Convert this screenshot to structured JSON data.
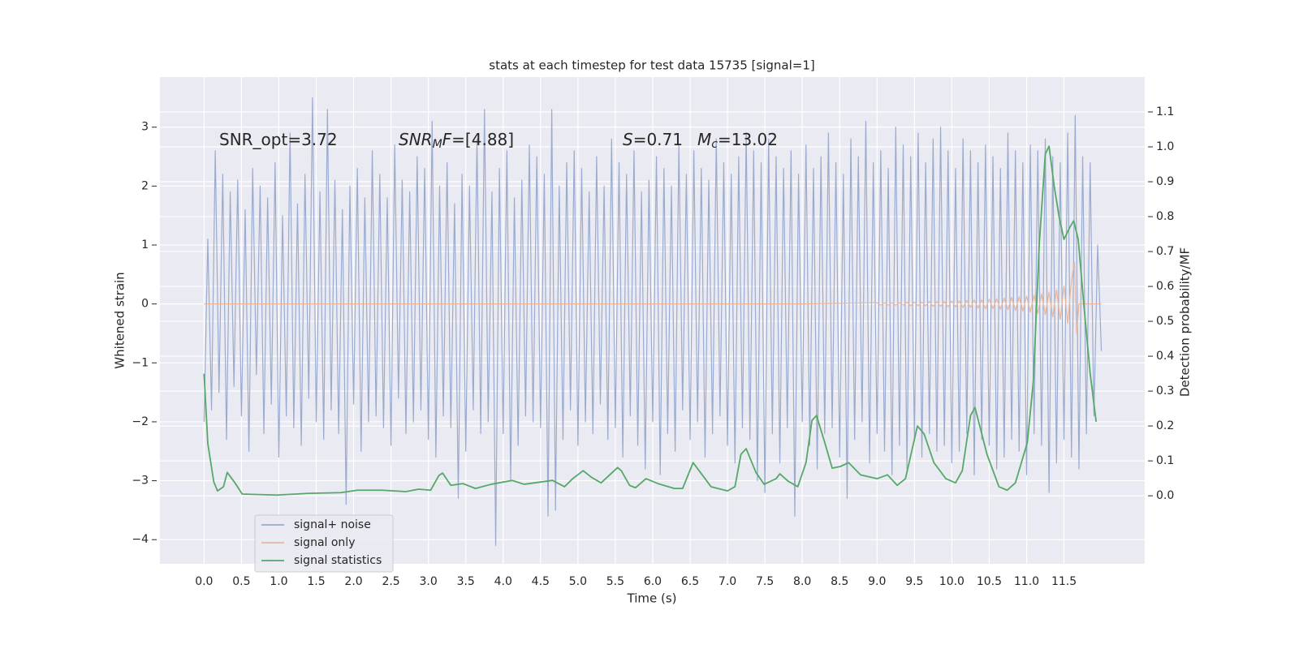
{
  "chart_data": {
    "type": "line",
    "title": "stats at each timestep for test data 15735 [signal=1]",
    "xlabel": "Time (s)",
    "ylabel": "Whitened strain",
    "y2label": "Detection probability/MF",
    "annotations": [
      [
        {
          "text": "SNR_opt=3.72"
        }
      ],
      [
        {
          "text": "SNR",
          "italic": true
        },
        {
          "text": "M",
          "italic": true,
          "sub": true
        },
        {
          "text": "F",
          "italic": true
        },
        {
          "text": "=[4.88]"
        }
      ],
      [
        {
          "text": "S",
          "italic": true
        },
        {
          "text": "=0.71"
        }
      ],
      [
        {
          "text": "M",
          "italic": true
        },
        {
          "text": "c",
          "italic": true,
          "sub": true
        },
        {
          "text": "=13.02"
        }
      ]
    ],
    "grid": true,
    "legend": "lower left",
    "xlim": [
      -0.59,
      12.58
    ],
    "ylim": [
      -4.41,
      3.85
    ],
    "y2lim": [
      -0.195,
      1.2
    ],
    "xticks": [
      {
        "value": 0,
        "label": "0.0"
      },
      0.5,
      {
        "value": 1,
        "label": "1.0"
      },
      1.5,
      {
        "value": 2,
        "label": "2.0"
      },
      2.5,
      {
        "value": 3,
        "label": "3.0"
      },
      3.5,
      {
        "value": 4,
        "label": "4.0"
      },
      4.5,
      {
        "value": 5,
        "label": "5.0"
      },
      5.5,
      {
        "value": 6,
        "label": "6.0"
      },
      6.5,
      {
        "value": 7,
        "label": "7.0"
      },
      7.5,
      {
        "value": 8,
        "label": "8.0"
      },
      8.5,
      {
        "value": 9,
        "label": "9.0"
      },
      9.5,
      {
        "value": 10,
        "label": "10.0"
      },
      10.5,
      {
        "value": 11,
        "label": "11.0"
      },
      11.5
    ],
    "yticks": [
      {
        "value": -4,
        "label": "−4"
      },
      {
        "value": -3,
        "label": "−3"
      },
      {
        "value": -2,
        "label": "−2"
      },
      {
        "value": -1,
        "label": "−1"
      },
      0,
      1,
      2,
      3
    ],
    "y2ticks": [
      {
        "value": 0,
        "label": "0.0"
      },
      0.1,
      0.2,
      0.3,
      0.4,
      0.5,
      0.6,
      0.7,
      0.8,
      0.9,
      {
        "value": 1,
        "label": "1.0"
      },
      1.1
    ],
    "series": [
      {
        "name": "signal+ noise",
        "color": "#9aabcf",
        "axis": "y",
        "x": [
          0,
          0.05,
          0.1,
          0.15,
          0.2,
          0.25,
          0.3,
          0.35,
          0.4,
          0.45,
          0.5,
          0.55,
          0.6,
          0.65,
          0.7,
          0.75,
          0.8,
          0.85,
          0.9,
          0.95,
          1,
          1.05,
          1.1,
          1.15,
          1.2,
          1.25,
          1.3,
          1.35,
          1.4,
          1.45,
          1.5,
          1.55,
          1.6,
          1.65,
          1.7,
          1.75,
          1.8,
          1.85,
          1.9,
          1.95,
          2,
          2.05,
          2.1,
          2.15,
          2.2,
          2.25,
          2.3,
          2.35,
          2.4,
          2.45,
          2.5,
          2.55,
          2.6,
          2.65,
          2.7,
          2.75,
          2.8,
          2.85,
          2.9,
          2.95,
          3,
          3.05,
          3.1,
          3.15,
          3.2,
          3.25,
          3.3,
          3.35,
          3.4,
          3.45,
          3.5,
          3.55,
          3.6,
          3.65,
          3.7,
          3.75,
          3.8,
          3.85,
          3.9,
          3.95,
          4,
          4.05,
          4.1,
          4.15,
          4.2,
          4.25,
          4.3,
          4.35,
          4.4,
          4.45,
          4.5,
          4.55,
          4.6,
          4.65,
          4.7,
          4.75,
          4.8,
          4.85,
          4.9,
          4.95,
          5,
          5.05,
          5.1,
          5.15,
          5.2,
          5.25,
          5.3,
          5.35,
          5.4,
          5.45,
          5.5,
          5.55,
          5.6,
          5.65,
          5.7,
          5.75,
          5.8,
          5.85,
          5.9,
          5.95,
          6,
          6.05,
          6.1,
          6.15,
          6.2,
          6.25,
          6.3,
          6.35,
          6.4,
          6.45,
          6.5,
          6.55,
          6.6,
          6.65,
          6.7,
          6.75,
          6.8,
          6.85,
          6.9,
          6.95,
          7,
          7.05,
          7.1,
          7.15,
          7.2,
          7.25,
          7.3,
          7.35,
          7.4,
          7.45,
          7.5,
          7.55,
          7.6,
          7.65,
          7.7,
          7.75,
          7.8,
          7.85,
          7.9,
          7.95,
          8,
          8.05,
          8.1,
          8.15,
          8.2,
          8.25,
          8.3,
          8.35,
          8.4,
          8.45,
          8.5,
          8.55,
          8.6,
          8.65,
          8.7,
          8.75,
          8.8,
          8.85,
          8.9,
          8.95,
          9,
          9.05,
          9.1,
          9.15,
          9.2,
          9.25,
          9.3,
          9.35,
          9.4,
          9.45,
          9.5,
          9.55,
          9.6,
          9.65,
          9.7,
          9.75,
          9.8,
          9.85,
          9.9,
          9.95,
          10,
          10.05,
          10.1,
          10.15,
          10.2,
          10.25,
          10.3,
          10.35,
          10.4,
          10.45,
          10.5,
          10.55,
          10.6,
          10.65,
          10.7,
          10.75,
          10.8,
          10.85,
          10.9,
          10.95,
          11,
          11.05,
          11.1,
          11.15,
          11.2,
          11.25,
          11.3,
          11.35,
          11.4,
          11.45,
          11.5,
          11.55,
          11.6,
          11.65,
          11.7,
          11.75,
          11.8,
          11.85,
          11.9,
          11.95,
          12
        ],
        "values": [
          -2.0,
          1.1,
          -1.8,
          2.6,
          -1.5,
          2.2,
          -2.3,
          1.9,
          -1.4,
          2.1,
          -1.9,
          1.6,
          -2.5,
          2.3,
          -1.2,
          2.0,
          -2.2,
          1.8,
          -1.7,
          2.4,
          -2.6,
          1.5,
          -1.9,
          2.9,
          -2.1,
          1.7,
          -2.4,
          2.2,
          -1.6,
          3.5,
          -2.0,
          1.9,
          -2.3,
          3.3,
          -1.8,
          2.1,
          -2.2,
          1.6,
          -3.4,
          2.0,
          -1.7,
          2.3,
          -2.5,
          1.8,
          -2.0,
          2.6,
          -1.9,
          2.2,
          -2.1,
          1.8,
          -2.4,
          2.7,
          -1.6,
          2.1,
          -2.2,
          1.9,
          -2.0,
          2.5,
          -1.8,
          2.3,
          -2.3,
          3.1,
          -2.6,
          2.0,
          -1.9,
          2.4,
          -2.1,
          1.7,
          -3.3,
          2.2,
          -2.5,
          2.0,
          -1.8,
          2.8,
          -2.2,
          3.3,
          -2.0,
          1.9,
          -4.1,
          2.3,
          -2.2,
          2.6,
          -3.0,
          1.8,
          -2.4,
          2.1,
          -1.9,
          2.7,
          -2.0,
          2.5,
          -2.1,
          2.2,
          -3.6,
          3.3,
          -3.5,
          2.0,
          -2.3,
          2.4,
          -1.8,
          2.6,
          -2.4,
          2.3,
          -2.0,
          1.9,
          -2.2,
          2.5,
          -1.7,
          2.0,
          -2.3,
          2.8,
          -2.1,
          2.4,
          -2.6,
          2.2,
          -1.9,
          2.6,
          -2.4,
          1.9,
          -2.8,
          2.1,
          -2.0,
          2.5,
          -2.9,
          2.3,
          -2.2,
          2.0,
          -2.5,
          2.7,
          -1.8,
          2.2,
          -2.3,
          2.6,
          -2.0,
          2.3,
          -2.6,
          2.1,
          -2.2,
          2.8,
          -1.9,
          2.4,
          -2.4,
          2.2,
          -2.7,
          2.5,
          -2.1,
          2.9,
          -2.3,
          2.6,
          -3.0,
          2.4,
          -3.2,
          2.8,
          -2.2,
          2.5,
          -2.7,
          2.3,
          -2.1,
          2.6,
          -3.6,
          2.2,
          -2.0,
          2.7,
          -2.4,
          2.3,
          -2.8,
          2.5,
          -2.2,
          2.9,
          -2.1,
          2.4,
          -2.6,
          2.2,
          -3.3,
          2.8,
          -2.3,
          2.5,
          -2.0,
          3.1,
          -2.7,
          2.4,
          -2.2,
          2.6,
          -2.5,
          2.3,
          -2.9,
          3.0,
          -2.4,
          2.7,
          -2.8,
          2.5,
          -2.3,
          2.9,
          -2.6,
          2.4,
          -2.2,
          2.8,
          -2.5,
          3.0,
          -2.4,
          2.6,
          -2.7,
          2.3,
          -2.5,
          2.8,
          -2.2,
          2.6,
          -2.9,
          2.4,
          -2.3,
          2.7,
          -2.4,
          2.5,
          -2.8,
          2.3,
          -2.6,
          2.9,
          -2.3,
          2.6,
          -2.5,
          2.4,
          -2.9,
          2.7,
          -2.2,
          2.6,
          -2.4,
          2.8,
          -3.2,
          2.5,
          -2.7,
          2.4,
          -2.3,
          2.9,
          -2.6,
          3.2,
          -2.8,
          2.5,
          -2.2,
          2.4,
          -1.9,
          1.0,
          -0.8
        ]
      },
      {
        "name": "signal only",
        "color": "#ebb59a",
        "axis": "y",
        "x": [
          0,
          8.0,
          9.0,
          9.05,
          9.1,
          9.15,
          9.2,
          9.25,
          9.3,
          9.35,
          9.4,
          9.45,
          9.5,
          9.55,
          9.6,
          9.65,
          9.7,
          9.75,
          9.8,
          9.85,
          9.9,
          9.95,
          10.0,
          10.05,
          10.1,
          10.15,
          10.2,
          10.25,
          10.3,
          10.35,
          10.4,
          10.45,
          10.5,
          10.55,
          10.6,
          10.65,
          10.7,
          10.75,
          10.8,
          10.85,
          10.9,
          10.95,
          11.0,
          11.05,
          11.1,
          11.15,
          11.2,
          11.25,
          11.3,
          11.35,
          11.4,
          11.45,
          11.5,
          11.55,
          11.6,
          11.64,
          11.67,
          11.7,
          12.0
        ],
        "values": [
          0,
          0,
          0.02,
          -0.02,
          0.02,
          -0.02,
          0.02,
          -0.02,
          0.02,
          -0.02,
          0.03,
          -0.03,
          0.03,
          -0.03,
          0.03,
          -0.03,
          0.04,
          -0.04,
          0.04,
          -0.04,
          0.04,
          -0.05,
          0.05,
          -0.05,
          0.05,
          -0.06,
          0.06,
          -0.06,
          0.07,
          -0.07,
          0.07,
          -0.08,
          0.08,
          -0.08,
          0.09,
          -0.09,
          0.1,
          -0.1,
          0.11,
          -0.11,
          0.12,
          -0.12,
          0.13,
          -0.14,
          0.15,
          -0.16,
          0.17,
          -0.18,
          0.2,
          -0.22,
          0.24,
          -0.26,
          0.3,
          -0.33,
          0.4,
          0.7,
          -0.5,
          0,
          0
        ]
      },
      {
        "name": "signal statistics",
        "color": "#55a868",
        "axis": "y2",
        "x": [
          0,
          0.05,
          0.13,
          0.18,
          0.26,
          0.31,
          0.42,
          0.51,
          0.97,
          1.4,
          1.83,
          2.05,
          2.38,
          2.7,
          2.87,
          3.03,
          3.14,
          3.19,
          3.3,
          3.46,
          3.63,
          3.84,
          4.12,
          4.28,
          4.66,
          4.82,
          4.93,
          5.07,
          5.18,
          5.31,
          5.53,
          5.58,
          5.69,
          5.77,
          5.91,
          6.07,
          6.29,
          6.4,
          6.54,
          6.62,
          6.78,
          7.0,
          7.1,
          7.18,
          7.25,
          7.38,
          7.49,
          7.65,
          7.7,
          7.81,
          7.94,
          8.05,
          8.13,
          8.19,
          8.3,
          8.4,
          8.51,
          8.62,
          8.78,
          9.0,
          9.14,
          9.27,
          9.38,
          9.54,
          9.63,
          9.76,
          9.92,
          10.05,
          10.14,
          10.25,
          10.31,
          10.47,
          10.63,
          10.74,
          10.85,
          11.01,
          11.09,
          11.17,
          11.25,
          11.3,
          11.37,
          11.44,
          11.5,
          11.58,
          11.63,
          11.69,
          11.77,
          11.85,
          11.93
        ],
        "values": [
          0.35,
          0.15,
          0.04,
          0.014,
          0.026,
          0.067,
          0.035,
          0.005,
          0.002,
          0.007,
          0.009,
          0.016,
          0.016,
          0.012,
          0.019,
          0.016,
          0.058,
          0.065,
          0.03,
          0.035,
          0.021,
          0.033,
          0.044,
          0.033,
          0.044,
          0.026,
          0.049,
          0.072,
          0.053,
          0.037,
          0.081,
          0.072,
          0.03,
          0.023,
          0.049,
          0.035,
          0.021,
          0.021,
          0.095,
          0.072,
          0.026,
          0.014,
          0.026,
          0.119,
          0.135,
          0.067,
          0.033,
          0.049,
          0.063,
          0.042,
          0.026,
          0.095,
          0.216,
          0.23,
          0.153,
          0.079,
          0.084,
          0.095,
          0.06,
          0.049,
          0.06,
          0.03,
          0.049,
          0.2,
          0.177,
          0.095,
          0.049,
          0.037,
          0.072,
          0.23,
          0.253,
          0.119,
          0.026,
          0.016,
          0.037,
          0.153,
          0.328,
          0.723,
          0.979,
          1.002,
          0.886,
          0.793,
          0.735,
          0.77,
          0.788,
          0.735,
          0.537,
          0.351,
          0.212
        ]
      }
    ]
  }
}
